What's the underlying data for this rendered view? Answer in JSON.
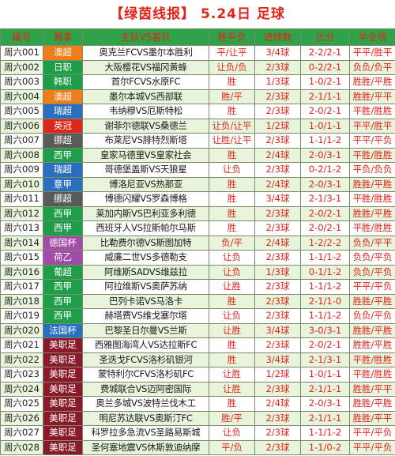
{
  "header": {
    "title": "【绿茵线报】 5.24日 足球"
  },
  "columns": [
    "编号",
    "赛事",
    "主队VS客队",
    "胜平负",
    "进球数",
    "比分",
    "半全场"
  ],
  "rows": [
    {
      "id": "周六001",
      "league": "澳超",
      "league_color": "#f07d1a",
      "match": "奥克兰FCVS墨尔本胜利",
      "result": "平/让平",
      "goals": "3/4球",
      "score": "2-2/2-1",
      "halftime": "平平/胜平"
    },
    {
      "id": "周六002",
      "league": "日职",
      "league_color": "#1f9e4a",
      "match": "大阪樱花VS福冈黄蜂",
      "result": "让负/负",
      "goals": "2/3球",
      "score": "0-2/2-1",
      "halftime": "负负/负平"
    },
    {
      "id": "周六003",
      "league": "韩职",
      "league_color": "#1f9e4a",
      "match": "首尔FCVS水原FC",
      "result": "胜",
      "goals": "1/3球",
      "score": "1-0/2-1",
      "halftime": "胜胜/平胜"
    },
    {
      "id": "周六004",
      "league": "澳超",
      "league_color": "#f07d1a",
      "match": "墨尔本城VS西部联",
      "result": "胜/平",
      "goals": "2/3球",
      "score": "2-1/1-1",
      "halftime": "胜胜/平平"
    },
    {
      "id": "周六005",
      "league": "瑞超",
      "league_color": "#2a6fbf",
      "match": "韦纳穆VS厄斯特松",
      "result": "胜",
      "goals": "2/3球",
      "score": "2-0/2-1",
      "halftime": "平胜/胜胜"
    },
    {
      "id": "周六006",
      "league": "英冠",
      "league_color": "#e0251b",
      "match": "谢菲尔德联VS桑德兰",
      "result": "让负/让平",
      "goals": "1/2球",
      "score": "1-0/1-1",
      "halftime": "平平/胜平"
    },
    {
      "id": "周六007",
      "league": "挪超",
      "league_color": "#5a5a5a",
      "match": "布莱尼VS腓特烈斯塔",
      "result": "让胜/让平",
      "goals": "2/3球",
      "score": "1-1/1-2",
      "halftime": "平平/平负"
    },
    {
      "id": "周六008",
      "league": "西甲",
      "league_color": "#1f9e4a",
      "match": "皇家马德里VS皇家社会",
      "result": "胜",
      "goals": "2/4球",
      "score": "2-0/3-1",
      "halftime": "平胜/胜胜"
    },
    {
      "id": "周六009",
      "league": "瑞超",
      "league_color": "#2a6fbf",
      "match": "哥德堡盖斯VS天狼星",
      "result": "让负",
      "goals": "2/3球",
      "score": "0-2/1-2",
      "halftime": "平负/负负"
    },
    {
      "id": "周六010",
      "league": "意甲",
      "league_color": "#2a6fbf",
      "match": "博洛尼亚VS热那亚",
      "result": "胜",
      "goals": "2/4球",
      "score": "2-0/3-1",
      "halftime": "胜胜/平胜"
    },
    {
      "id": "周六011",
      "league": "挪超",
      "league_color": "#5a5a5a",
      "match": "博德闪耀VS罗森博格",
      "result": "胜",
      "goals": "3/4球",
      "score": "2-1/3-1",
      "halftime": "平胜/胜胜"
    },
    {
      "id": "周六012",
      "league": "西甲",
      "league_color": "#1f9e4a",
      "match": "莱加内斯VS巴利亚多利德",
      "result": "胜",
      "goals": "2/3球",
      "score": "2-0/2-1",
      "halftime": "胜胜/平胜"
    },
    {
      "id": "周六013",
      "league": "西甲",
      "league_color": "#1f9e4a",
      "match": "西班牙人VS拉斯帕尔马斯",
      "result": "胜",
      "goals": "2/3球",
      "score": "2-0/2-1",
      "halftime": "平胜/胜胜"
    },
    {
      "id": "周六014",
      "league": "德国杯",
      "league_color": "#a24ba8",
      "match": "比勒费尔德VS斯图加特",
      "result": "负/平",
      "goals": "2/4球",
      "score": "1-2/2-2",
      "halftime": "负负/平平"
    },
    {
      "id": "周六015",
      "league": "荷乙",
      "league_color": "#a24ba8",
      "match": "威廉二世VS多德勒支",
      "result": "让负",
      "goals": "2/3球",
      "score": "1-1/1-2",
      "halftime": "负负/平负"
    },
    {
      "id": "周六016",
      "league": "葡超",
      "league_color": "#1f9e4a",
      "match": "阿维斯SADVS维兹拉",
      "result": "让负",
      "goals": "1/3球",
      "score": "0-1/1-2",
      "halftime": "负负/平负"
    },
    {
      "id": "周六017",
      "league": "西甲",
      "league_color": "#1f9e4a",
      "match": "阿拉维斯VS奥萨苏纳",
      "result": "让胜",
      "goals": "2/3球",
      "score": "1-1/1-2",
      "halftime": "平平/平负"
    },
    {
      "id": "周六018",
      "league": "西甲",
      "league_color": "#1f9e4a",
      "match": "巴列卡诺VS马洛卡",
      "result": "胜",
      "goals": "2/3球",
      "score": "2-1/1-0",
      "halftime": "胜胜/平胜"
    },
    {
      "id": "周六019",
      "league": "西甲",
      "league_color": "#1f9e4a",
      "match": "赫塔费VS维戈塞尔塔",
      "result": "让负",
      "goals": "2/3球",
      "score": "1-1/1-2",
      "halftime": "负负/平负"
    },
    {
      "id": "周六020",
      "league": "法国杯",
      "league_color": "#2a6fbf",
      "match": "巴黎圣日尔曼VS兰斯",
      "result": "让胜",
      "goals": "3/4球",
      "score": "3-0/3-1",
      "halftime": "胜胜/平胜"
    },
    {
      "id": "周六021",
      "league": "美职足",
      "league_color": "#8a1a2a",
      "match": "西雅图海湾人VS达拉斯FC",
      "result": "胜",
      "goals": "2/3球",
      "score": "2-0/2-1",
      "halftime": "胜胜/平胜"
    },
    {
      "id": "周六022",
      "league": "美职足",
      "league_color": "#8a1a2a",
      "match": "圣迭戈FCVS洛杉矶银河",
      "result": "胜",
      "goals": "3/4球",
      "score": "2-1/3-1",
      "halftime": "平胜/胜胜"
    },
    {
      "id": "周六023",
      "league": "美职足",
      "league_color": "#8a1a2a",
      "match": "蒙特利尔CFVS洛杉矶FC",
      "result": "让胜",
      "goals": "1/2球",
      "score": "1-0/1-1",
      "halftime": "平胜/胜胜"
    },
    {
      "id": "周六024",
      "league": "美职足",
      "league_color": "#8a1a2a",
      "match": "费城联合VS迈阿密国际",
      "result": "让胜",
      "goals": "2/3球",
      "score": "2-1/1-1",
      "halftime": "胜胜/平平"
    },
    {
      "id": "周六025",
      "league": "美职足",
      "league_color": "#8a1a2a",
      "match": "奥兰多城VS波特兰伐木工",
      "result": "胜",
      "goals": "2/4球",
      "score": "2-0/3-1",
      "halftime": "胜胜/平胜"
    },
    {
      "id": "周六026",
      "league": "美职足",
      "league_color": "#8a1a2a",
      "match": "明尼苏达联VS奥斯汀FC",
      "result": "胜/平",
      "goals": "2/3球",
      "score": "2-1/1-1",
      "halftime": "胜胜/平平"
    },
    {
      "id": "周六027",
      "league": "美职足",
      "league_color": "#8a1a2a",
      "match": "科罗拉多急流VS圣路易斯城",
      "result": "让负",
      "goals": "2/3球",
      "score": "1-1/1-2",
      "halftime": "平平/平负"
    },
    {
      "id": "周六028",
      "league": "美职足",
      "league_color": "#8a1a2a",
      "match": "圣何塞地震VS休斯敦迪纳摩",
      "result": "平/负",
      "goals": "2/3球",
      "score": "1-1/0-2",
      "halftime": "平平/平负"
    }
  ]
}
